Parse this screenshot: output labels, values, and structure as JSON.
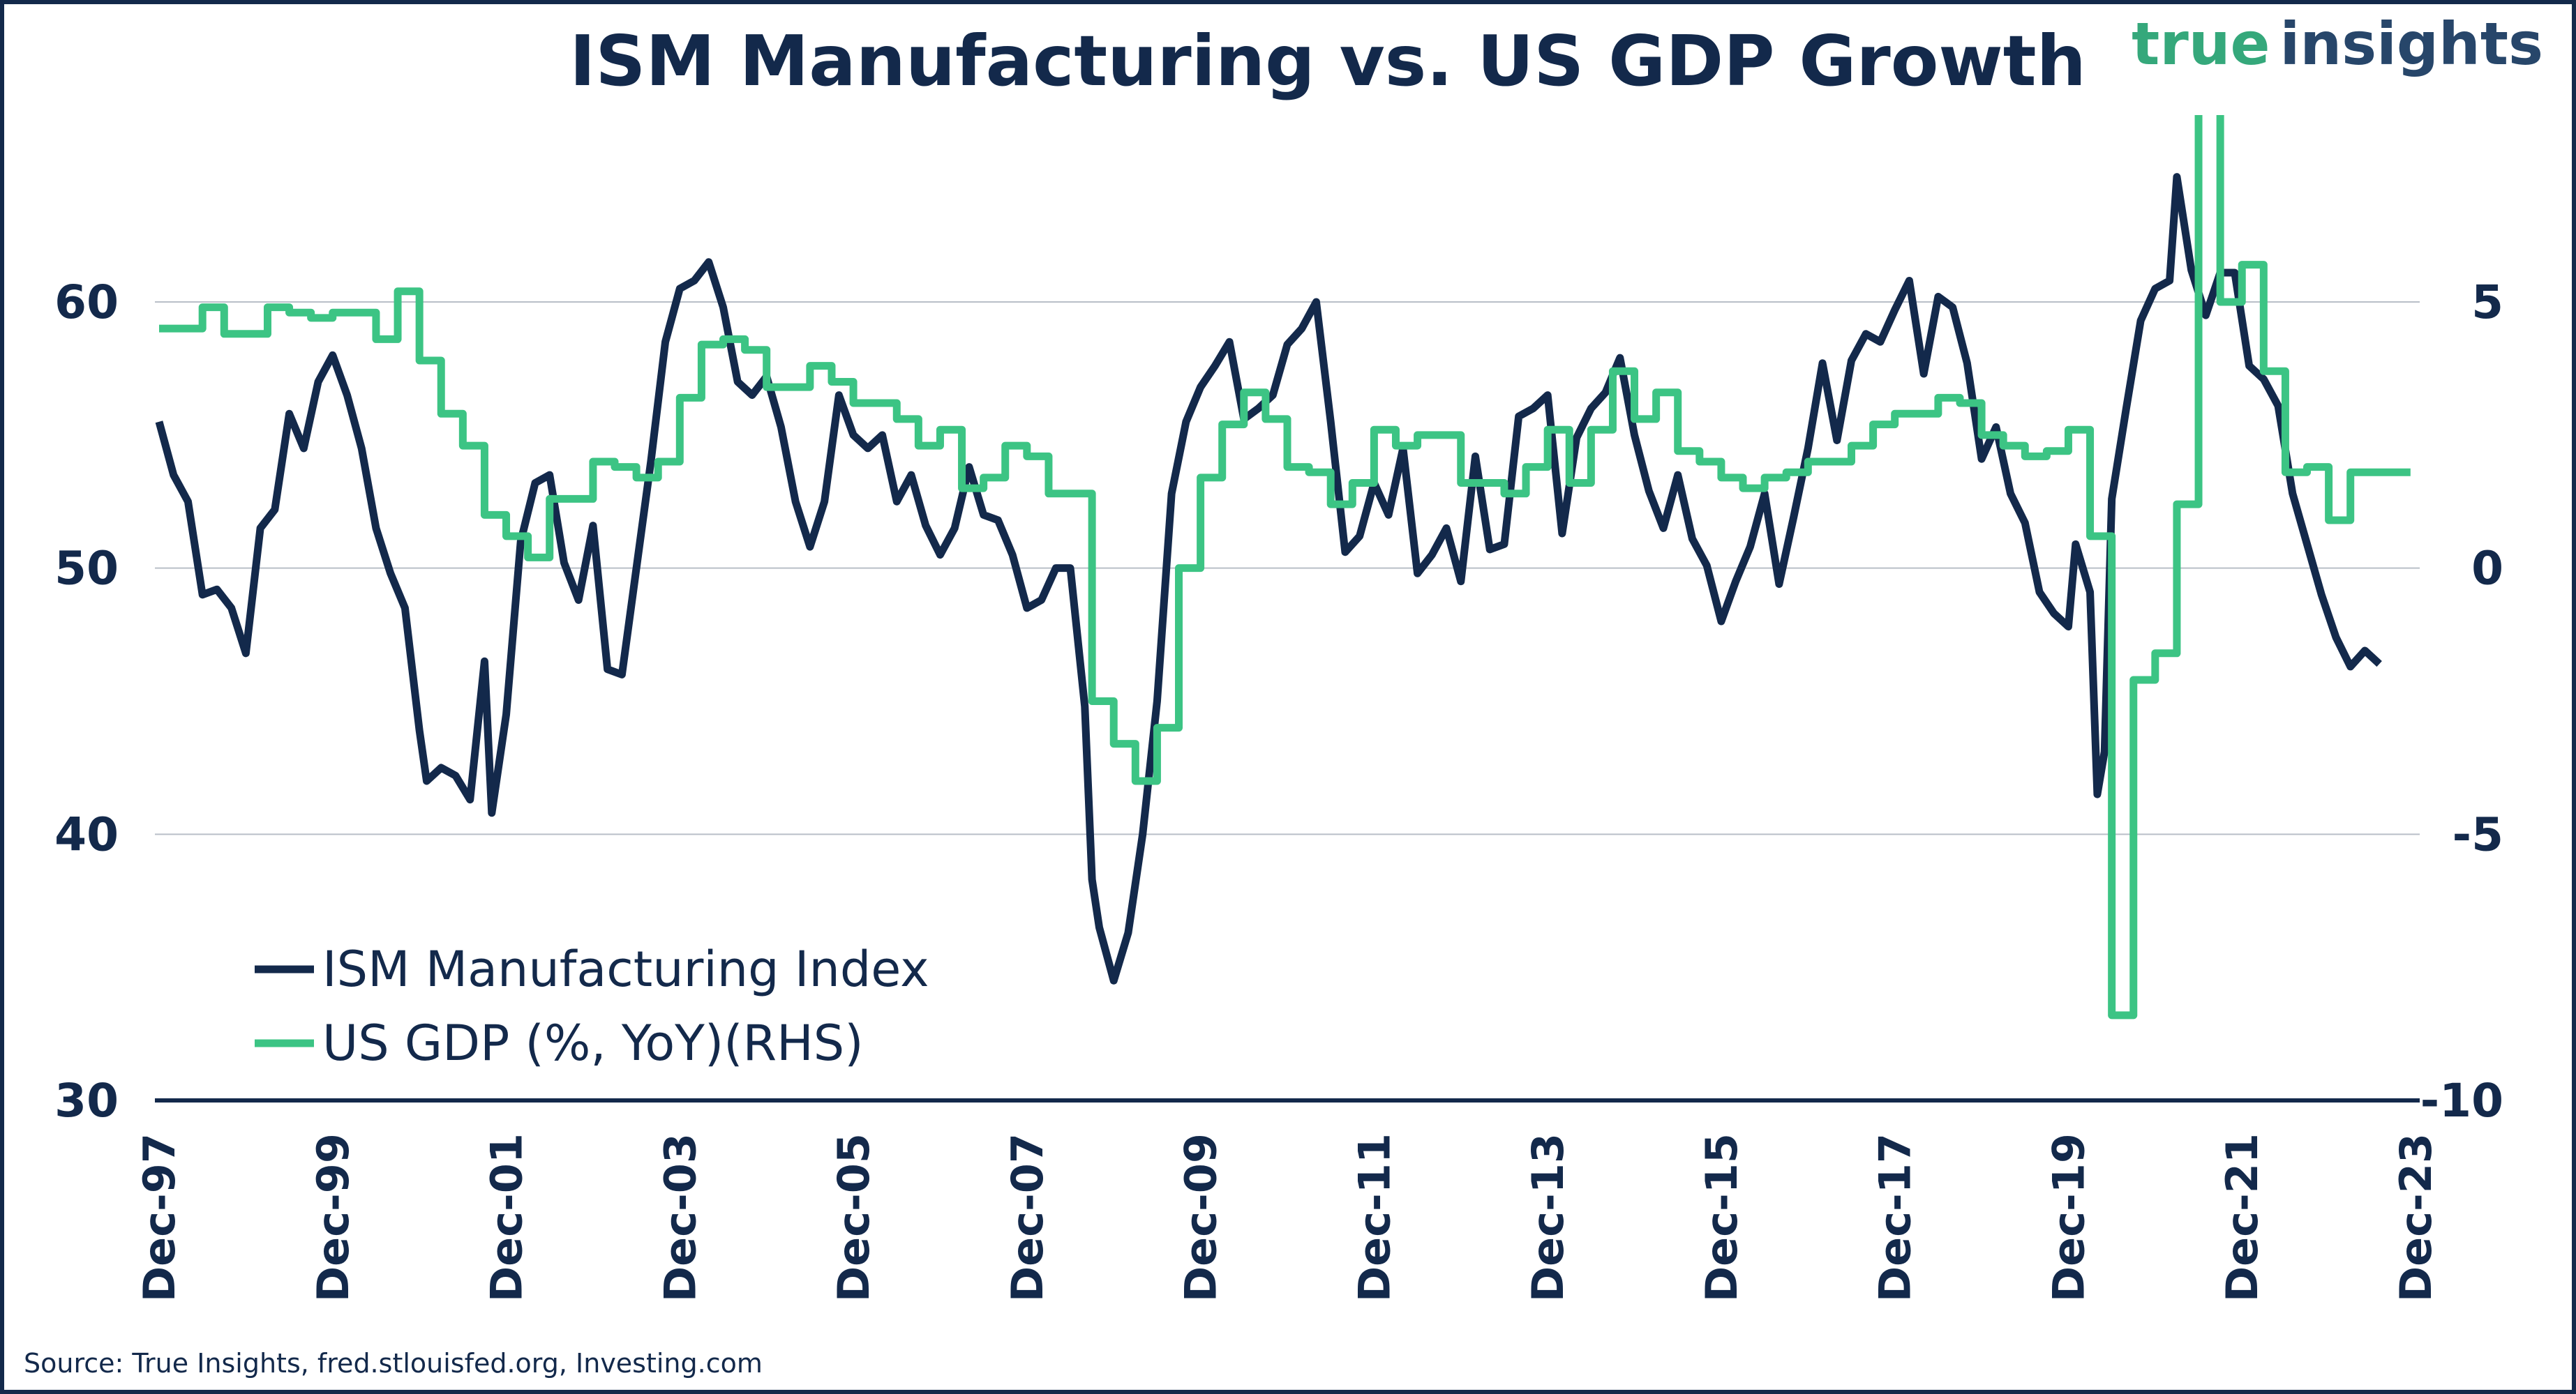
{
  "chart_data": {
    "type": "line",
    "title": "ISM Manufacturing vs. US GDP Growth",
    "source": "Source: True Insights, fred.stlouisfed.org, Investing.com",
    "logo": {
      "part1": "true",
      "part2": "insights",
      "color1": "#35a87b",
      "color2": "#27466a"
    },
    "x_ticks": [
      "Dec-97",
      "Dec-99",
      "Dec-01",
      "Dec-03",
      "Dec-05",
      "Dec-07",
      "Dec-09",
      "Dec-11",
      "Dec-13",
      "Dec-15",
      "Dec-17",
      "Dec-19",
      "Dec-21",
      "Dec-23"
    ],
    "y_left": {
      "ticks": [
        "60",
        "50",
        "40",
        "30"
      ],
      "range": [
        30,
        68.5
      ]
    },
    "y_right": {
      "ticks": [
        "5",
        "0",
        "-5",
        "-10"
      ],
      "range": [
        -10,
        9.25
      ]
    },
    "grid": true,
    "legend_position": "bottom-left",
    "series": [
      {
        "name": "ISM Manufacturing Index",
        "axis": "left",
        "color": "#13294b",
        "x": [
          "1997-12",
          "1998-02",
          "1998-04",
          "1998-06",
          "1998-08",
          "1998-10",
          "1998-12",
          "1999-02",
          "1999-04",
          "1999-06",
          "1999-08",
          "1999-10",
          "1999-12",
          "2000-02",
          "2000-04",
          "2000-06",
          "2000-08",
          "2000-10",
          "2000-12",
          "2001-01",
          "2001-03",
          "2001-05",
          "2001-07",
          "2001-09",
          "2001-10",
          "2001-12",
          "2002-02",
          "2002-04",
          "2002-06",
          "2002-08",
          "2002-10",
          "2002-12",
          "2003-02",
          "2003-04",
          "2003-06",
          "2003-08",
          "2003-10",
          "2003-12",
          "2004-02",
          "2004-04",
          "2004-06",
          "2004-08",
          "2004-10",
          "2004-12",
          "2005-02",
          "2005-04",
          "2005-06",
          "2005-08",
          "2005-10",
          "2005-12",
          "2006-02",
          "2006-04",
          "2006-06",
          "2006-08",
          "2006-10",
          "2006-12",
          "2007-02",
          "2007-04",
          "2007-06",
          "2007-08",
          "2007-10",
          "2007-12",
          "2008-02",
          "2008-04",
          "2008-06",
          "2008-08",
          "2008-09",
          "2008-10",
          "2008-12",
          "2009-02",
          "2009-04",
          "2009-06",
          "2009-08",
          "2009-10",
          "2009-12",
          "2010-02",
          "2010-04",
          "2010-06",
          "2010-08",
          "2010-10",
          "2010-12",
          "2011-02",
          "2011-04",
          "2011-06",
          "2011-08",
          "2011-10",
          "2011-12",
          "2012-02",
          "2012-04",
          "2012-06",
          "2012-08",
          "2012-10",
          "2012-12",
          "2013-02",
          "2013-04",
          "2013-06",
          "2013-08",
          "2013-10",
          "2013-12",
          "2014-02",
          "2014-04",
          "2014-06",
          "2014-08",
          "2014-10",
          "2014-12",
          "2015-02",
          "2015-04",
          "2015-06",
          "2015-08",
          "2015-10",
          "2015-12",
          "2016-02",
          "2016-04",
          "2016-06",
          "2016-08",
          "2016-10",
          "2016-12",
          "2017-02",
          "2017-04",
          "2017-06",
          "2017-08",
          "2017-10",
          "2017-12",
          "2018-02",
          "2018-04",
          "2018-06",
          "2018-08",
          "2018-10",
          "2018-12",
          "2019-02",
          "2019-04",
          "2019-06",
          "2019-08",
          "2019-10",
          "2019-12",
          "2020-01",
          "2020-03",
          "2020-04",
          "2020-05",
          "2020-06",
          "2020-08",
          "2020-10",
          "2020-12",
          "2021-02",
          "2021-03",
          "2021-05",
          "2021-07",
          "2021-09",
          "2021-11",
          "2022-01",
          "2022-03",
          "2022-05",
          "2022-07",
          "2022-09",
          "2022-11",
          "2023-01",
          "2023-03",
          "2023-05",
          "2023-07"
        ],
        "values": [
          55.5,
          53.5,
          52.5,
          49,
          49.2,
          48.5,
          46.8,
          51.5,
          52.2,
          55.8,
          54.5,
          57,
          58,
          56.5,
          54.5,
          51.5,
          49.8,
          48.5,
          43.9,
          42,
          42.5,
          42.2,
          41.3,
          46.5,
          40.8,
          44.5,
          51,
          53.2,
          53.5,
          50.2,
          48.8,
          51.6,
          46.2,
          46,
          50,
          54,
          58.5,
          60.5,
          60.8,
          61.5,
          59.8,
          57,
          56.5,
          57.2,
          55.3,
          52.5,
          50.8,
          52.5,
          56.5,
          55,
          54.5,
          55,
          52.5,
          53.5,
          51.6,
          50.5,
          51.5,
          53.8,
          52,
          51.8,
          50.5,
          48.5,
          48.8,
          50,
          50,
          44.8,
          38.3,
          36.5,
          34.5,
          36.3,
          40,
          45,
          52.8,
          55.5,
          56.8,
          57.6,
          58.5,
          55.6,
          56,
          56.5,
          58.4,
          59,
          60,
          55.5,
          50.6,
          51.2,
          53.2,
          52,
          54.5,
          49.8,
          50.5,
          51.5,
          49.5,
          54.2,
          50.7,
          50.9,
          55.7,
          56,
          56.5,
          51.3,
          54.9,
          56,
          56.6,
          57.9,
          55,
          52.9,
          51.5,
          53.5,
          51.1,
          50.1,
          48,
          49.5,
          50.8,
          52.8,
          49.4,
          51.9,
          54.5,
          57.7,
          54.8,
          57.8,
          58.8,
          58.5,
          59.7,
          60.8,
          57.3,
          60.2,
          59.8,
          57.7,
          54.1,
          55.3,
          52.8,
          51.7,
          49.1,
          48.3,
          47.8,
          50.9,
          49.1,
          41.5,
          43.1,
          52.6,
          56,
          59.3,
          60.5,
          60.8,
          64.7,
          61.2,
          59.5,
          61.1,
          61.1,
          57.6,
          57.1,
          56.1,
          52.8,
          50.9,
          49,
          47.4,
          46.3,
          46.9,
          46.4
        ]
      },
      {
        "name": "US GDP (%, YoY)(RHS)",
        "axis": "right",
        "color": "#3cc484",
        "step": true,
        "x": [
          "1997-12",
          "1998-03",
          "1998-06",
          "1998-09",
          "1998-12",
          "1999-03",
          "1999-06",
          "1999-09",
          "1999-12",
          "2000-03",
          "2000-06",
          "2000-09",
          "2000-12",
          "2001-03",
          "2001-06",
          "2001-09",
          "2001-12",
          "2002-03",
          "2002-06",
          "2002-09",
          "2002-12",
          "2003-03",
          "2003-06",
          "2003-09",
          "2003-12",
          "2004-03",
          "2004-06",
          "2004-09",
          "2004-12",
          "2005-03",
          "2005-06",
          "2005-09",
          "2005-12",
          "2006-03",
          "2006-06",
          "2006-09",
          "2006-12",
          "2007-03",
          "2007-06",
          "2007-09",
          "2007-12",
          "2008-03",
          "2008-06",
          "2008-09",
          "2008-12",
          "2009-03",
          "2009-06",
          "2009-09",
          "2009-12",
          "2010-03",
          "2010-06",
          "2010-09",
          "2010-12",
          "2011-03",
          "2011-06",
          "2011-09",
          "2011-12",
          "2012-03",
          "2012-06",
          "2012-09",
          "2012-12",
          "2013-03",
          "2013-06",
          "2013-09",
          "2013-12",
          "2014-03",
          "2014-06",
          "2014-09",
          "2014-12",
          "2015-03",
          "2015-06",
          "2015-09",
          "2015-12",
          "2016-03",
          "2016-06",
          "2016-09",
          "2016-12",
          "2017-03",
          "2017-06",
          "2017-09",
          "2017-12",
          "2018-03",
          "2018-06",
          "2018-09",
          "2018-12",
          "2019-03",
          "2019-06",
          "2019-09",
          "2019-12",
          "2020-03",
          "2020-06",
          "2020-09",
          "2020-12",
          "2021-03",
          "2021-06",
          "2021-09",
          "2021-12",
          "2022-03",
          "2022-06",
          "2022-09",
          "2022-12",
          "2023-03",
          "2023-06"
        ],
        "values": [
          4.5,
          4.5,
          4.9,
          4.4,
          4.4,
          4.9,
          4.8,
          4.7,
          4.8,
          4.8,
          4.3,
          5.2,
          3.9,
          2.9,
          2.3,
          1.0,
          0.6,
          0.2,
          1.3,
          1.3,
          2.0,
          1.9,
          1.7,
          2.0,
          3.2,
          4.2,
          4.3,
          4.1,
          3.4,
          3.4,
          3.8,
          3.5,
          3.1,
          3.1,
          2.8,
          2.3,
          2.6,
          1.5,
          1.7,
          2.3,
          2.1,
          1.4,
          1.4,
          -2.5,
          -3.3,
          -4.0,
          -3.0,
          0.0,
          1.7,
          2.7,
          3.3,
          2.8,
          1.9,
          1.8,
          1.2,
          1.6,
          2.6,
          2.3,
          2.5,
          2.5,
          1.6,
          1.6,
          1.4,
          1.9,
          2.6,
          1.6,
          2.6,
          3.7,
          2.8,
          3.3,
          2.2,
          2.0,
          1.7,
          1.5,
          1.7,
          1.8,
          2.0,
          2.0,
          2.3,
          2.7,
          2.9,
          2.9,
          3.2,
          3.1,
          2.5,
          2.3,
          2.1,
          2.2,
          2.6,
          0.6,
          -8.4,
          -2.1,
          -1.6,
          1.2,
          12.2,
          5.0,
          5.7,
          3.7,
          1.8,
          1.9,
          0.9,
          1.8,
          1.8
        ]
      }
    ]
  }
}
